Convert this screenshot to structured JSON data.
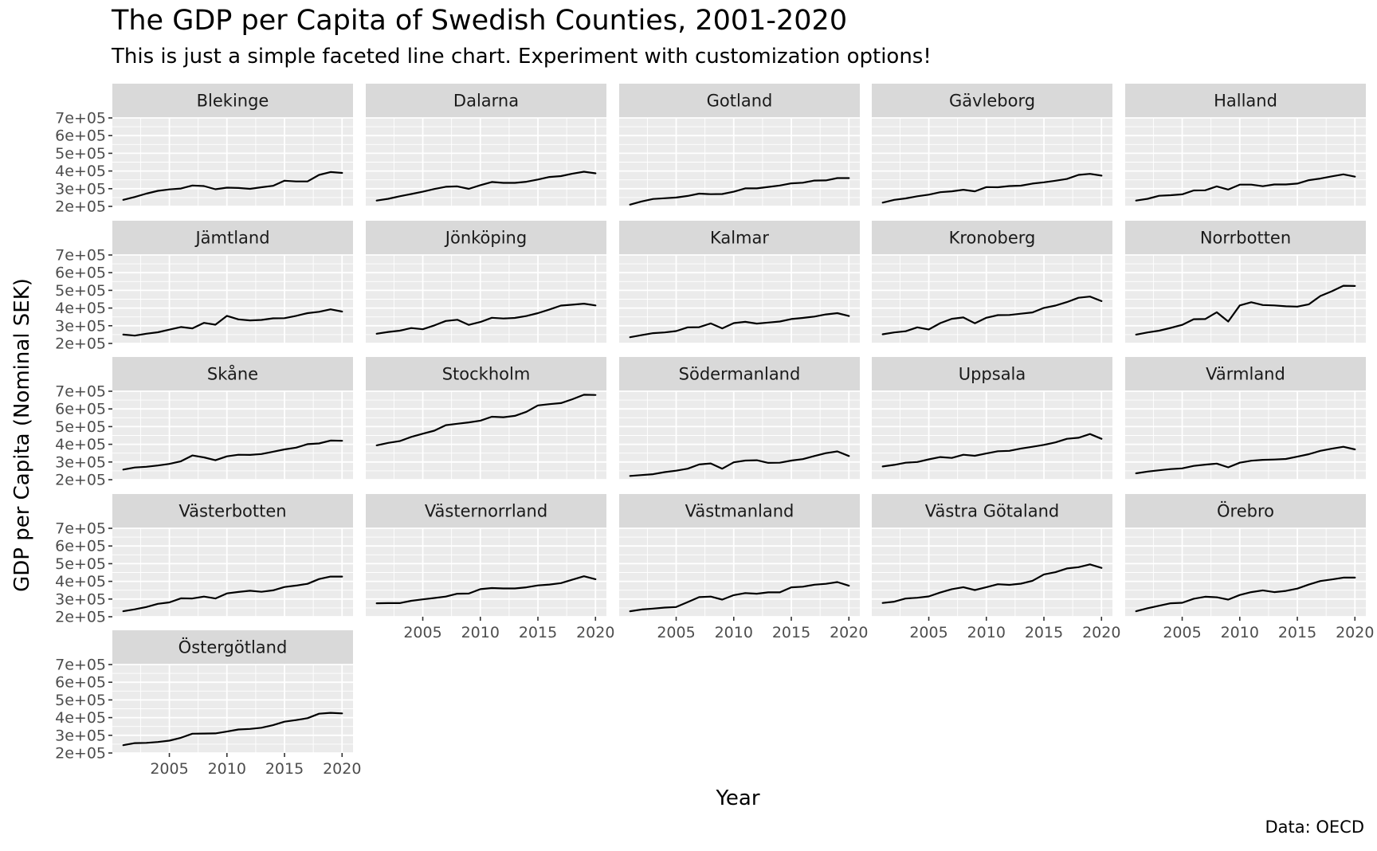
{
  "title": "The GDP per Capita of Swedish Counties, 2001-2020",
  "subtitle": "This is just a simple faceted line chart. Experiment with customization options!",
  "caption": "Data: OECD",
  "chart_data": {
    "type": "line",
    "facet": "county",
    "xlabel": "Year",
    "ylabel": "GDP per Capita (Nominal SEK)",
    "x": [
      2001,
      2002,
      2003,
      2004,
      2005,
      2006,
      2007,
      2008,
      2009,
      2010,
      2011,
      2012,
      2013,
      2014,
      2015,
      2016,
      2017,
      2018,
      2019,
      2020
    ],
    "xlim": [
      2000.05,
      2020.95
    ],
    "ylim": [
      200000,
      700000
    ],
    "x_ticks": [
      2005,
      2010,
      2015,
      2020
    ],
    "x_tick_labels": [
      "2005",
      "2010",
      "2015",
      "2020"
    ],
    "y_ticks": [
      200000,
      300000,
      400000,
      500000,
      600000,
      700000
    ],
    "y_tick_labels": [
      "2e+05",
      "3e+05",
      "4e+05",
      "5e+05",
      "6e+05",
      "7e+05"
    ],
    "grid": true,
    "line_color": "#000000",
    "panel_background": "#ebebeb",
    "strip_background": "#d9d9d9",
    "series": [
      {
        "name": "Blekinge",
        "values": [
          237000,
          253000,
          272000,
          288000,
          296000,
          301000,
          318000,
          315000,
          297000,
          306000,
          304000,
          299000,
          308000,
          316000,
          345000,
          341000,
          341000,
          378000,
          394000,
          389000
        ]
      },
      {
        "name": "Dalarna",
        "values": [
          233000,
          243000,
          257000,
          270000,
          283000,
          298000,
          311000,
          313000,
          299000,
          320000,
          338000,
          333000,
          333000,
          339000,
          352000,
          366000,
          371000,
          385000,
          396000,
          387000
        ]
      },
      {
        "name": "Gotland",
        "values": [
          210000,
          228000,
          242000,
          246000,
          250000,
          259000,
          272000,
          269000,
          270000,
          283000,
          302000,
          302000,
          310000,
          318000,
          330000,
          334000,
          346000,
          347000,
          360000,
          360000
        ]
      },
      {
        "name": "Gävleborg",
        "values": [
          221000,
          237000,
          245000,
          257000,
          266000,
          280000,
          285000,
          294000,
          285000,
          309000,
          308000,
          315000,
          317000,
          329000,
          336000,
          345000,
          355000,
          378000,
          384000,
          374000
        ]
      },
      {
        "name": "Halland",
        "values": [
          233000,
          243000,
          260000,
          263000,
          268000,
          290000,
          291000,
          313000,
          295000,
          323000,
          323000,
          314000,
          324000,
          324000,
          329000,
          348000,
          357000,
          370000,
          381000,
          368000
        ]
      },
      {
        "name": "Jämtland",
        "values": [
          250000,
          244000,
          255000,
          263000,
          278000,
          293000,
          285000,
          316000,
          306000,
          356000,
          336000,
          330000,
          333000,
          342000,
          343000,
          356000,
          371000,
          379000,
          393000,
          380000
        ]
      },
      {
        "name": "Jönköping",
        "values": [
          255000,
          265000,
          272000,
          287000,
          280000,
          302000,
          327000,
          334000,
          305000,
          321000,
          345000,
          341000,
          344000,
          355000,
          371000,
          392000,
          414000,
          419000,
          425000,
          415000
        ]
      },
      {
        "name": "Kalmar",
        "values": [
          235000,
          247000,
          258000,
          262000,
          270000,
          291000,
          292000,
          313000,
          285000,
          315000,
          322000,
          312000,
          318000,
          324000,
          338000,
          344000,
          352000,
          364000,
          371000,
          355000
        ]
      },
      {
        "name": "Kronoberg",
        "values": [
          252000,
          262000,
          269000,
          291000,
          279000,
          315000,
          339000,
          347000,
          314000,
          345000,
          360000,
          361000,
          368000,
          375000,
          401000,
          414000,
          434000,
          458000,
          465000,
          439000
        ]
      },
      {
        "name": "Norrbotten",
        "values": [
          250000,
          262000,
          272000,
          288000,
          305000,
          337000,
          338000,
          376000,
          324000,
          415000,
          433000,
          417000,
          415000,
          410000,
          408000,
          421000,
          468000,
          495000,
          526000,
          525000
        ]
      },
      {
        "name": "Skåne",
        "values": [
          257000,
          269000,
          273000,
          280000,
          289000,
          304000,
          337000,
          326000,
          310000,
          332000,
          341000,
          340000,
          345000,
          358000,
          371000,
          381000,
          401000,
          405000,
          421000,
          420000
        ]
      },
      {
        "name": "Stockholm",
        "values": [
          394000,
          408000,
          418000,
          442000,
          460000,
          477000,
          508000,
          516000,
          524000,
          534000,
          556000,
          553000,
          561000,
          584000,
          620000,
          627000,
          633000,
          655000,
          680000,
          679000
        ]
      },
      {
        "name": "Södermanland",
        "values": [
          221000,
          226000,
          231000,
          243000,
          251000,
          262000,
          286000,
          292000,
          262000,
          298000,
          308000,
          310000,
          295000,
          296000,
          308000,
          316000,
          334000,
          350000,
          360000,
          334000
        ]
      },
      {
        "name": "Uppsala",
        "values": [
          275000,
          284000,
          296000,
          300000,
          315000,
          328000,
          323000,
          341000,
          335000,
          348000,
          361000,
          363000,
          376000,
          386000,
          397000,
          411000,
          431000,
          437000,
          458000,
          431000
        ]
      },
      {
        "name": "Värmland",
        "values": [
          236000,
          246000,
          253000,
          260000,
          264000,
          278000,
          285000,
          291000,
          270000,
          296000,
          307000,
          312000,
          314000,
          317000,
          330000,
          344000,
          363000,
          375000,
          386000,
          371000
        ]
      },
      {
        "name": "Västerbotten",
        "values": [
          231000,
          242000,
          255000,
          273000,
          281000,
          304000,
          303000,
          314000,
          303000,
          332000,
          340000,
          347000,
          341000,
          349000,
          368000,
          376000,
          386000,
          413000,
          427000,
          427000
        ]
      },
      {
        "name": "Västernorrland",
        "values": [
          276000,
          277000,
          277000,
          290000,
          298000,
          306000,
          314000,
          330000,
          331000,
          356000,
          362000,
          360000,
          360000,
          366000,
          377000,
          382000,
          390000,
          410000,
          429000,
          412000
        ]
      },
      {
        "name": "Västmanland",
        "values": [
          231000,
          241000,
          246000,
          252000,
          255000,
          283000,
          311000,
          314000,
          297000,
          322000,
          334000,
          330000,
          338000,
          338000,
          366000,
          370000,
          381000,
          386000,
          396000,
          375000
        ]
      },
      {
        "name": "Västra Götaland",
        "values": [
          278000,
          285000,
          303000,
          307000,
          315000,
          337000,
          356000,
          367000,
          351000,
          367000,
          384000,
          380000,
          387000,
          403000,
          439000,
          452000,
          473000,
          480000,
          496000,
          476000
        ]
      },
      {
        "name": "Örebro",
        "values": [
          231000,
          248000,
          262000,
          276000,
          279000,
          302000,
          313000,
          310000,
          297000,
          323000,
          339000,
          349000,
          339000,
          346000,
          359000,
          382000,
          402000,
          411000,
          421000,
          421000
        ]
      },
      {
        "name": "Östergötland",
        "values": [
          244000,
          256000,
          257000,
          262000,
          270000,
          286000,
          309000,
          310000,
          311000,
          321000,
          333000,
          336000,
          343000,
          357000,
          377000,
          386000,
          397000,
          422000,
          427000,
          424000
        ]
      }
    ]
  }
}
